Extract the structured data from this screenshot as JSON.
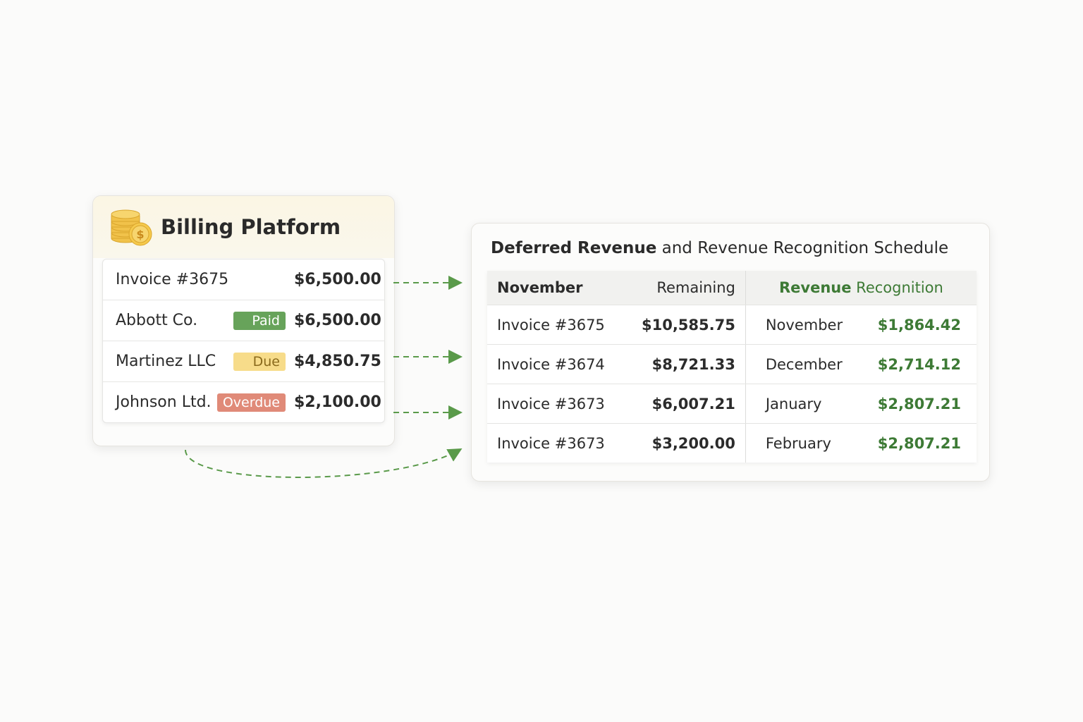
{
  "billing": {
    "title": "Billing Platform",
    "icon": "coin-stack-icon",
    "rows": [
      {
        "name": "Invoice #3675",
        "status": "",
        "amount": "$6,500.00"
      },
      {
        "name": "Abbott Co.",
        "status": "Paid",
        "amount": "$6,500.00"
      },
      {
        "name": "Martinez LLC",
        "status": "Due",
        "amount": "$4,850.75"
      },
      {
        "name": "Johnson Ltd.",
        "status": "Overdue",
        "amount": "$2,100.00"
      }
    ]
  },
  "schedule": {
    "title_bold": "Deferred Revenue",
    "title_rest": " and Revenue Recognition Schedule",
    "headers": {
      "month": "November",
      "remaining": "Remaining",
      "rec_bold": "Revenue",
      "rec_rest": " Recognition"
    },
    "rows": [
      {
        "invoice": "Invoice #3675",
        "remaining": "$10,585.75",
        "month": "November",
        "recognized": "$1,864.42"
      },
      {
        "invoice": "Invoice #3674",
        "remaining": "$8,721.33",
        "month": "December",
        "recognized": "$2,714.12"
      },
      {
        "invoice": "Invoice #3673",
        "remaining": "$6,007.21",
        "month": "January",
        "recognized": "$2,807.21"
      },
      {
        "invoice": "Invoice #3673",
        "remaining": "$3,200.00",
        "month": "February",
        "recognized": "$2,807.21"
      }
    ]
  },
  "colors": {
    "accent_green": "#3d7a35",
    "arrow": "#5a9a4a",
    "paid": "#67a35a",
    "due": "#f7dc8a",
    "overdue": "#e08a78"
  }
}
